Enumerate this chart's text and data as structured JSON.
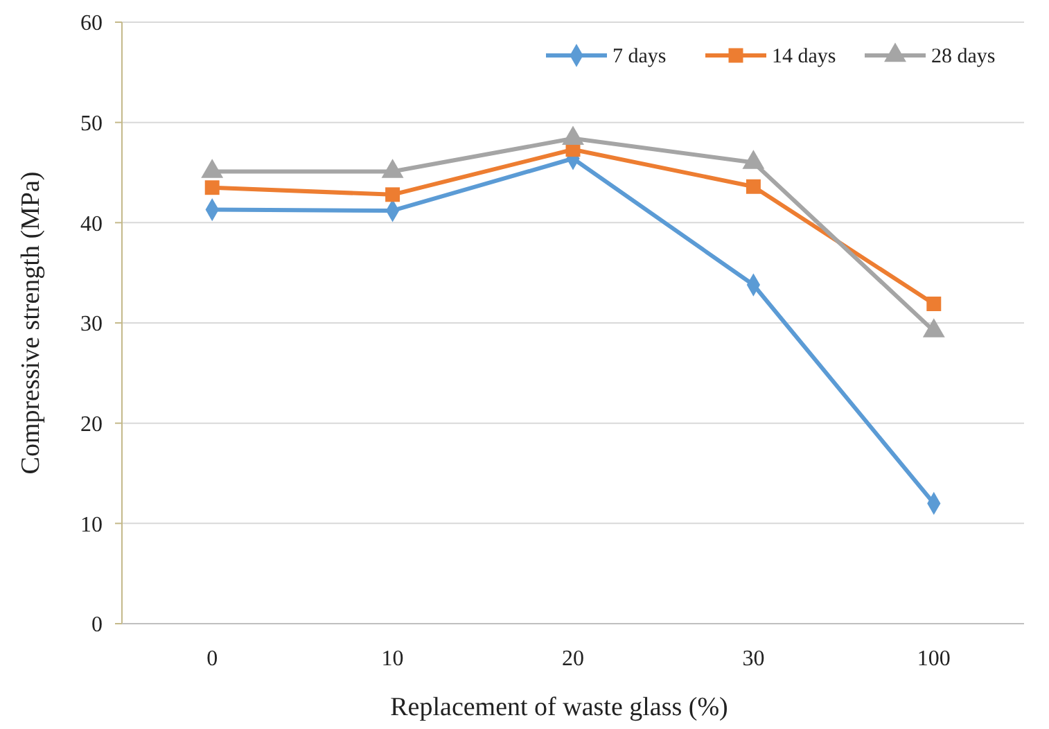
{
  "chart_data": {
    "type": "line",
    "xlabel": "Replacement of  waste glass (%)",
    "ylabel": "Compressive strength (MPa)",
    "categories": [
      "0",
      "10",
      "20",
      "30",
      "100"
    ],
    "series": [
      {
        "name": "7 days",
        "color": "#5b9bd5",
        "marker": "diamond",
        "values": [
          41.3,
          41.2,
          46.4,
          33.8,
          12
        ]
      },
      {
        "name": "14 days",
        "color": "#ed7d31",
        "marker": "square",
        "values": [
          43.5,
          42.8,
          47.3,
          43.6,
          31.9
        ]
      },
      {
        "name": "28 days",
        "color": "#a5a5a5",
        "marker": "triangle",
        "values": [
          45.1,
          45.1,
          48.4,
          46,
          29.2
        ]
      }
    ],
    "ylim": [
      0,
      60
    ],
    "yticks": [
      0,
      10,
      20,
      30,
      40,
      50,
      60
    ],
    "grid": "y",
    "legend": "top right",
    "line_style": "solid"
  }
}
